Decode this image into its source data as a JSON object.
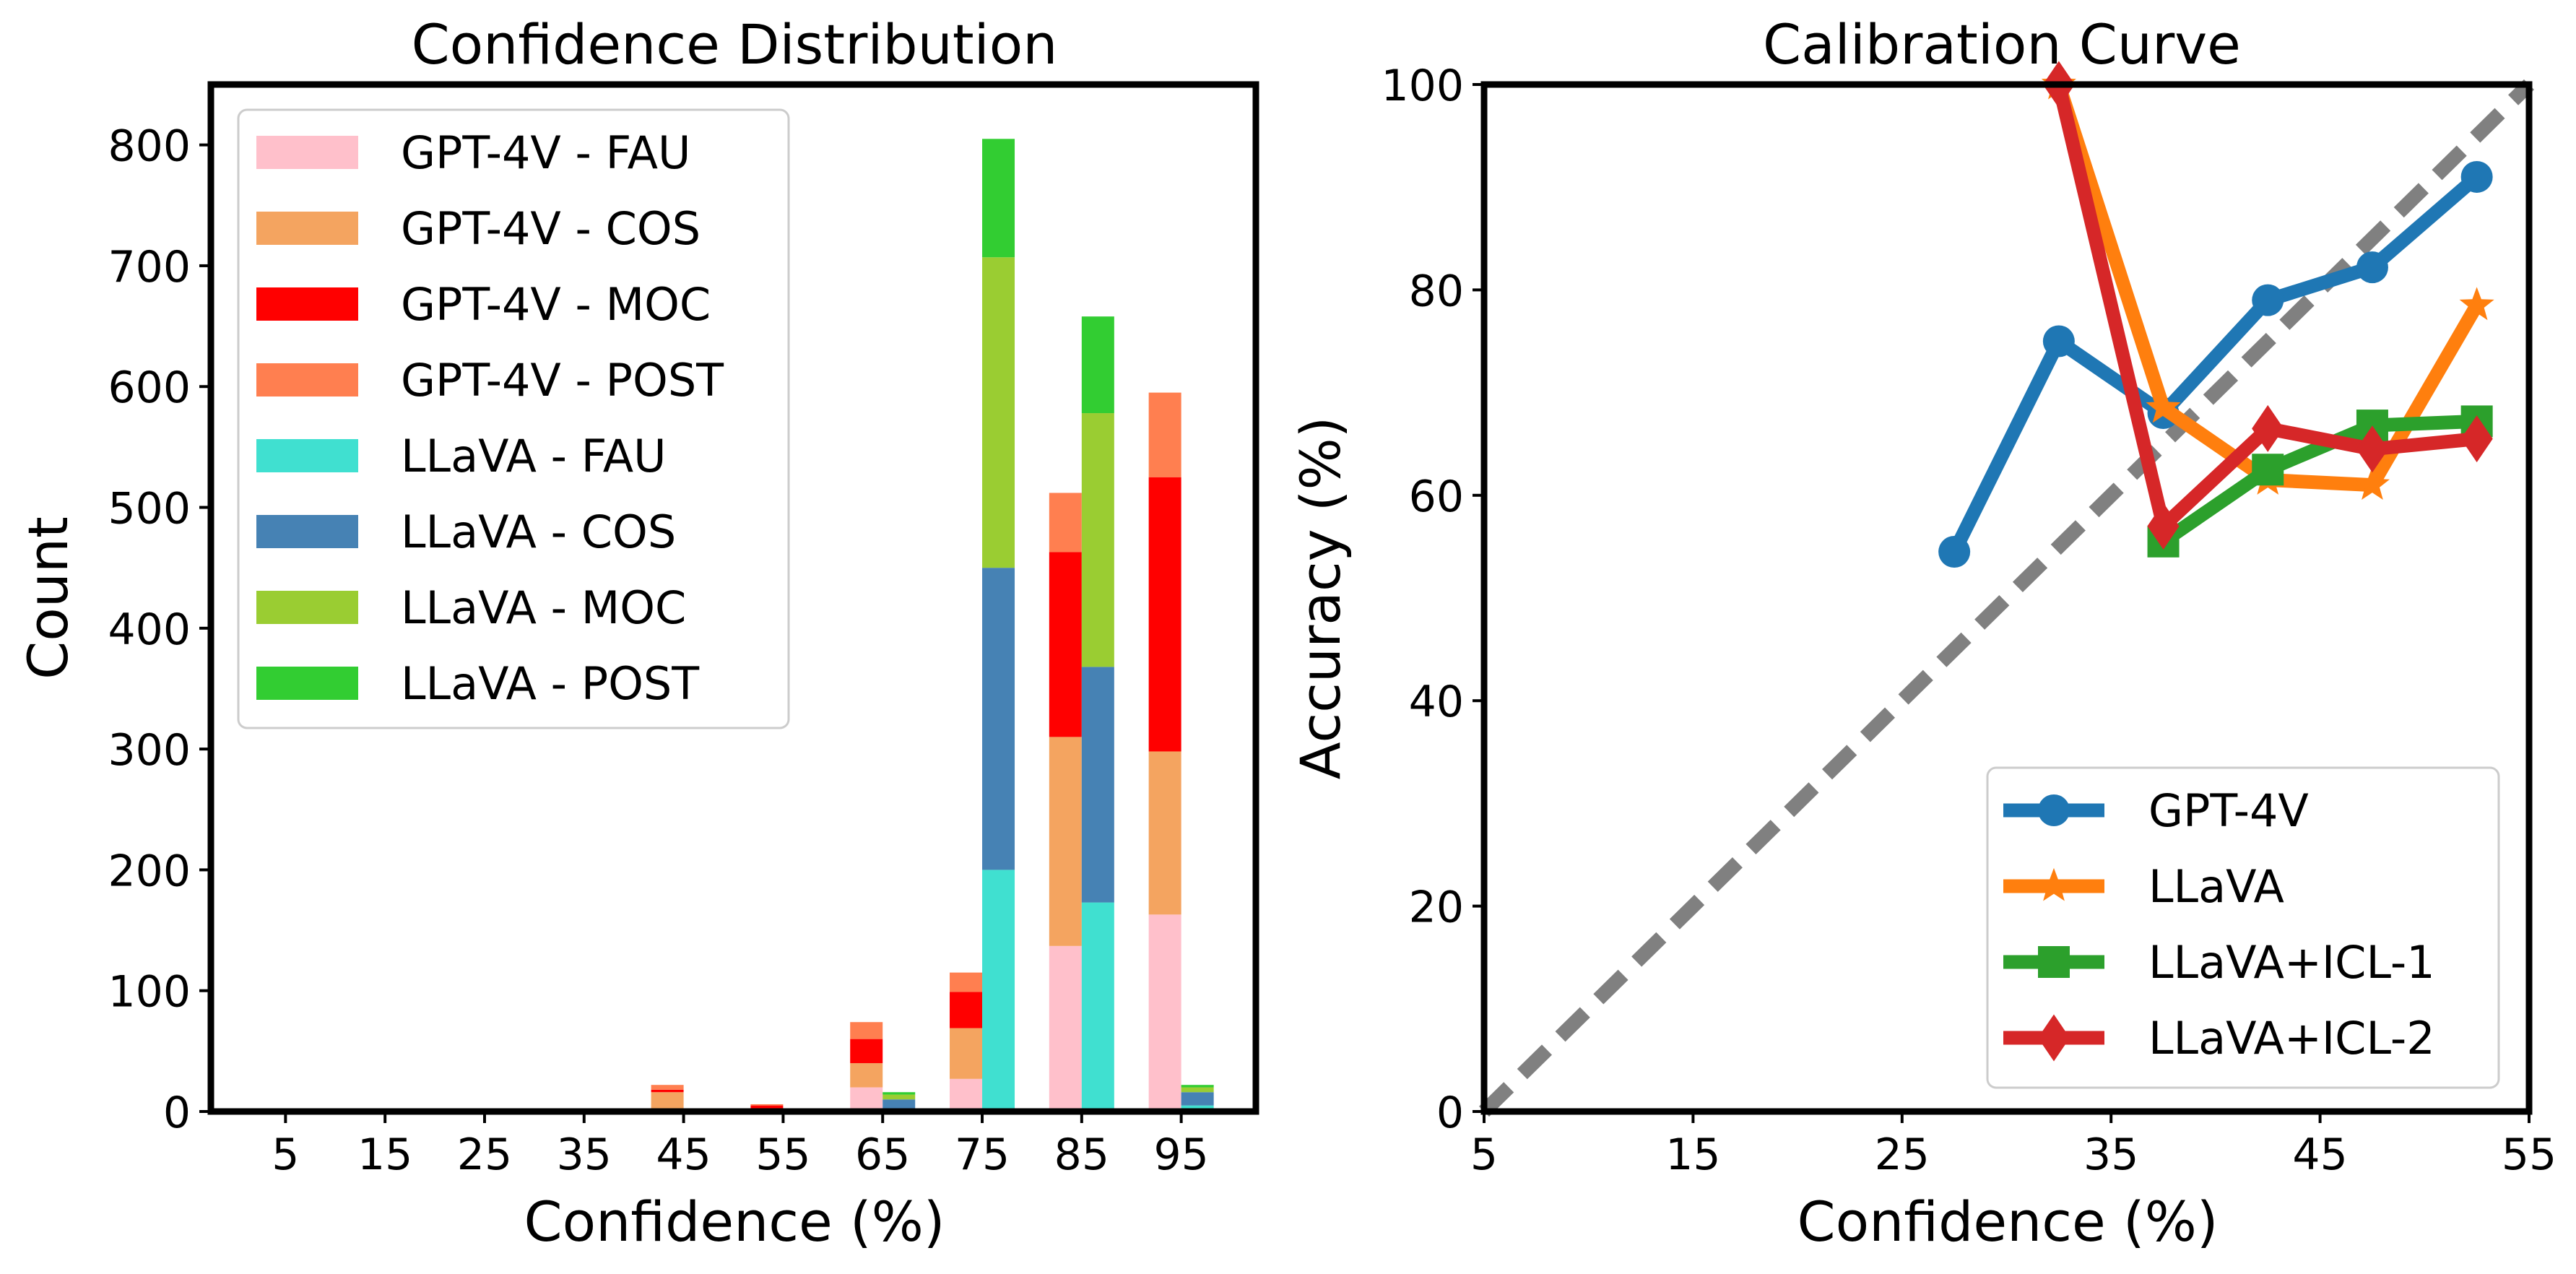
{
  "chart_data": [
    {
      "type": "bar",
      "stacked": true,
      "title": "Confidence Distribution",
      "xlabel": "Confidence (%)",
      "ylabel": "Count",
      "ylim": [
        0,
        850
      ],
      "yticks": [
        0,
        100,
        200,
        300,
        400,
        500,
        600,
        700,
        800
      ],
      "categories": [
        "5",
        "15",
        "25",
        "35",
        "45",
        "55",
        "65",
        "75",
        "85",
        "95"
      ],
      "legend_position": "top-left",
      "groups": [
        {
          "model": "GPT-4V",
          "series": [
            {
              "name": "GPT-4V - FAU",
              "color": "#ffc0cb",
              "values": [
                0,
                0,
                0,
                0,
                2,
                0,
                20,
                27,
                137,
                163
              ]
            },
            {
              "name": "GPT-4V - COS",
              "color": "#f4a460",
              "values": [
                0,
                0,
                0,
                0,
                14,
                1,
                20,
                42,
                173,
                135
              ]
            },
            {
              "name": "GPT-4V - MOC",
              "color": "#ff0000",
              "values": [
                0,
                0,
                0,
                0,
                2,
                4,
                20,
                30,
                153,
                227
              ]
            },
            {
              "name": "GPT-4V - POST",
              "color": "#ff7f50",
              "values": [
                0,
                0,
                0,
                0,
                4,
                1,
                14,
                16,
                49,
                70
              ]
            }
          ]
        },
        {
          "model": "LLaVA",
          "series": [
            {
              "name": "LLaVA - FAU",
              "color": "#40e0d0",
              "values": [
                0,
                0,
                0,
                0,
                0,
                0,
                2,
                200,
                173,
                5
              ]
            },
            {
              "name": "LLaVA - COS",
              "color": "#4682b4",
              "values": [
                0,
                0,
                0,
                0,
                0,
                0,
                8,
                250,
                195,
                11
              ]
            },
            {
              "name": "LLaVA - MOC",
              "color": "#9acd32",
              "values": [
                0,
                0,
                0,
                0,
                0,
                0,
                4,
                257,
                210,
                4
              ]
            },
            {
              "name": "LLaVA - POST",
              "color": "#32cd32",
              "values": [
                0,
                0,
                0,
                0,
                0,
                0,
                2,
                98,
                80,
                2
              ]
            }
          ]
        }
      ]
    },
    {
      "type": "line",
      "title": "Calibration Curve",
      "xlabel": "Confidence (%)",
      "ylabel": "Accuracy (%)",
      "xlim": [
        5,
        55
      ],
      "ylim": [
        0,
        100
      ],
      "xticks": [
        5,
        15,
        25,
        35,
        45,
        55
      ],
      "yticks": [
        0,
        20,
        40,
        60,
        80,
        100
      ],
      "legend_position": "bottom-right",
      "reference_line": {
        "style": "dashed",
        "color": "#808080",
        "from": [
          5,
          0
        ],
        "to": [
          55,
          100
        ]
      },
      "series": [
        {
          "name": "GPT-4V",
          "color": "#1f77b4",
          "marker": "circle",
          "x": [
            27.5,
            32.5,
            37.5,
            42.5,
            47.5,
            52.5
          ],
          "y": [
            54.5,
            75,
            68,
            79,
            82.2,
            91
          ]
        },
        {
          "name": "LLaVA",
          "color": "#ff7f0e",
          "marker": "star",
          "x": [
            32.5,
            37.5,
            42.5,
            47.5,
            52.5
          ],
          "y": [
            100,
            68.5,
            61.5,
            61,
            78.5
          ]
        },
        {
          "name": "LLaVA+ICL-1",
          "color": "#2ca02c",
          "marker": "square",
          "x": [
            37.5,
            42.5,
            47.5,
            52.5
          ],
          "y": [
            55.5,
            62.5,
            66.8,
            67.2
          ]
        },
        {
          "name": "LLaVA+ICL-2",
          "color": "#d62728",
          "marker": "diamond",
          "x": [
            32.5,
            37.5,
            42.5,
            47.5,
            52.5
          ],
          "y": [
            100,
            57,
            66.5,
            64.5,
            65.5
          ]
        }
      ]
    }
  ]
}
